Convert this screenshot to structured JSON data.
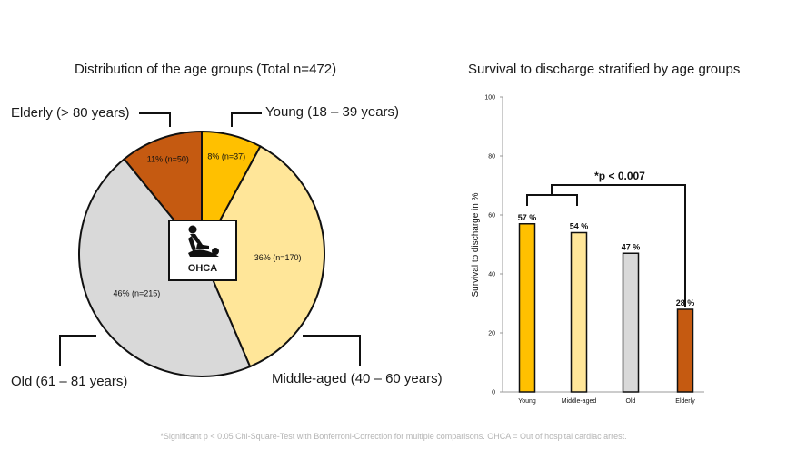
{
  "chart_data": [
    {
      "type": "pie",
      "title": "Distribution of the age groups (Total n=472)",
      "slices": [
        {
          "name": "Young (18 – 39 years)",
          "value": 8,
          "n": 37,
          "label": "8% (n=37)",
          "color": "#FFC000"
        },
        {
          "name": "Middle-aged (40 – 60 years)",
          "value": 36,
          "n": 170,
          "label": "36% (n=170)",
          "color": "#FFE699"
        },
        {
          "name": "Old (61 – 81 years)",
          "value": 46,
          "n": 215,
          "label": "46% (n=215)",
          "color": "#D9D9D9"
        },
        {
          "name": "Elderly (> 80 years)",
          "value": 11,
          "n": 50,
          "label": "11% (n=50)",
          "color": "#C55A11"
        }
      ],
      "center_label": "OHCA"
    },
    {
      "type": "bar",
      "title": "Survival  to discharge stratified by age groups",
      "categories": [
        "Young",
        "Middle-aged",
        "Old",
        "Elderly"
      ],
      "values": [
        57,
        54,
        47,
        28
      ],
      "value_labels": [
        "57 %",
        "54 %",
        "47 %",
        "28 %"
      ],
      "colors": [
        "#FFC000",
        "#FFE699",
        "#D9D9D9",
        "#C55A11"
      ],
      "xlabel": "",
      "ylabel": "Survival to discharge in %",
      "ylim": [
        0,
        100
      ],
      "yticks": [
        "0",
        "20",
        "40",
        "60",
        "80",
        "100"
      ],
      "grid": false,
      "annotation": "*p < 0.007"
    }
  ],
  "footnote": "*Significant p < 0.05 Chi-Square-Test with Bonferroni-Correction for multiple comparisons. OHCA = Out of hospital cardiac arrest.",
  "icons": {
    "center_icon": "cpr-icon"
  }
}
